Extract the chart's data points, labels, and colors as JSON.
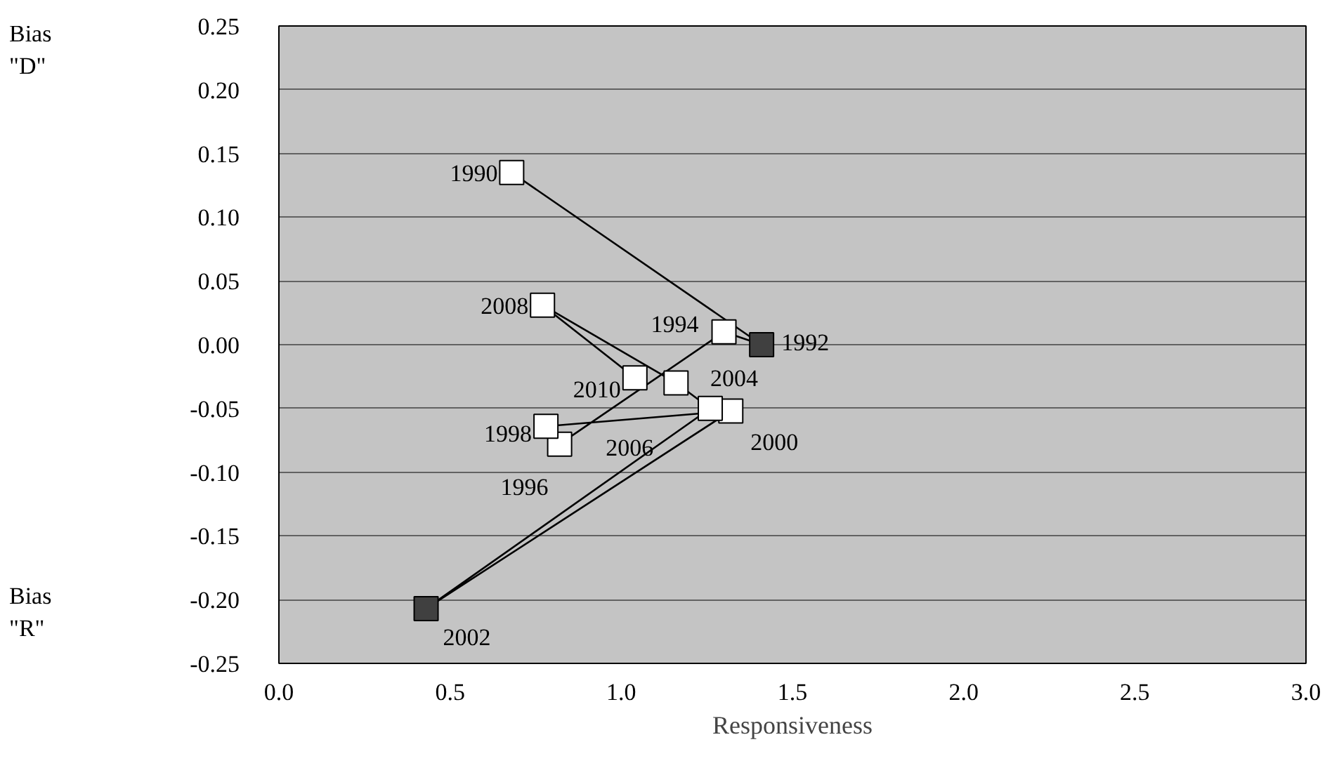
{
  "chart_data": {
    "type": "line",
    "xlabel": "Responsiveness",
    "x": [
      0.68,
      1.41,
      1.3,
      0.82,
      0.78,
      1.32,
      0.43,
      1.26,
      1.16,
      0.77,
      1.04
    ],
    "series": [
      {
        "color": "#000000",
        "values": [
          0.135,
          0.0,
          0.01,
          -0.078,
          -0.064,
          -0.052,
          -0.207,
          -0.05,
          -0.03,
          0.031,
          -0.026
        ],
        "colors": [
          "#ffffff",
          "#404040",
          "#ffffff",
          "#ffffff",
          "#ffffff",
          "#ffffff",
          "#404040",
          "#ffffff",
          "#ffffff",
          "#ffffff",
          "#ffffff"
        ]
      }
    ],
    "marker": "square",
    "line_style": "solid",
    "xlim": [
      0.0,
      3.0
    ],
    "xticks": [
      {
        "value": 0,
        "label": "0.0"
      },
      0.5,
      {
        "value": 1,
        "label": "1.0"
      },
      1.5,
      {
        "value": 2,
        "label": "2.0"
      },
      2.5,
      {
        "value": 3,
        "label": "3.0"
      }
    ],
    "ylim": [
      -0.25,
      0.25
    ],
    "yticks": [
      {
        "value": -0.25,
        "label": "-0.25"
      },
      {
        "value": -0.2,
        "label": "-0.20"
      },
      {
        "value": -0.15,
        "label": "-0.15"
      },
      {
        "value": -0.1,
        "label": "-0.10"
      },
      {
        "value": -0.05,
        "label": "-0.05"
      },
      {
        "value": 0,
        "label": "0.00"
      },
      {
        "value": 0.05,
        "label": "0.05"
      },
      {
        "value": 0.1,
        "label": "0.10"
      },
      {
        "value": 0.15,
        "label": "0.15"
      },
      {
        "value": 0.2,
        "label": "0.20"
      },
      {
        "value": 0.25,
        "label": "0.25"
      }
    ],
    "grid": "y",
    "annotations": [
      "Bias\n\"D\"",
      "Bias\n\"R\"",
      {
        "text": "1990",
        "x": 0.68,
        "y": 0.135
      },
      {
        "text": "1992",
        "x": 1.41,
        "y": 0.0
      },
      {
        "text": "1994",
        "x": 1.3,
        "y": 0.01
      },
      {
        "text": "1996",
        "x": 0.82,
        "y": -0.078
      },
      {
        "text": "1998",
        "x": 0.78,
        "y": -0.064
      },
      {
        "text": "2000",
        "x": 1.32,
        "y": -0.052
      },
      {
        "text": "2002",
        "x": 0.43,
        "y": -0.207
      },
      {
        "text": "2004",
        "x": 1.26,
        "y": -0.05
      },
      {
        "text": "2006",
        "x": 1.16,
        "y": -0.03
      },
      {
        "text": "2008",
        "x": 0.77,
        "y": 0.031
      },
      {
        "text": "2010",
        "x": 1.04,
        "y": -0.026
      }
    ]
  }
}
